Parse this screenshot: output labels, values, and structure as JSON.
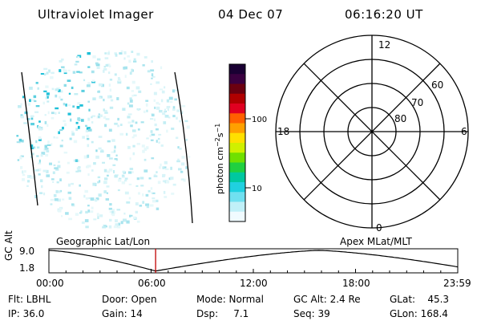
{
  "header": {
    "instrument": "Ultraviolet Imager",
    "date": "04 Dec 07",
    "time": "06:16:20 UT"
  },
  "colorbar": {
    "unit_label": "photon cm",
    "ticks": [
      "100",
      "10"
    ],
    "colors": [
      "#1a0033",
      "#3a0040",
      "#6b0010",
      "#b00000",
      "#e00020",
      "#ff6000",
      "#ffa000",
      "#ffe000",
      "#d0f000",
      "#70e000",
      "#20d040",
      "#00c8a0",
      "#20d0e0",
      "#70e0f0",
      "#c0f0f8",
      "#f0fbff"
    ]
  },
  "polar_plot": {
    "mlt_labels": {
      "top": "12",
      "left": "18",
      "right": "6",
      "bottom": "0"
    },
    "lat_labels": [
      "60",
      "70",
      "80"
    ]
  },
  "timeline": {
    "ylabel": "GC Alt",
    "ymax": "9.0",
    "ymin": "1.8",
    "left_label": "Geographic Lat/Lon",
    "right_label": "Apex  MLat/MLT",
    "ticks": [
      "00:00",
      "06:00",
      "12:00",
      "18:00",
      "23:59"
    ],
    "cursor_fraction": 0.261,
    "cursor_color": "#c00000"
  },
  "info": {
    "flt": "Flt: LBHL",
    "ip": "IP: 36.0",
    "door": "Door: Open",
    "gain": "Gain: 14",
    "mode": "Mode: Normal",
    "dsp": "Dsp:     7.1",
    "gc_alt": "GC Alt: 2.4 Re",
    "seq": "Seq: 39",
    "glat": "GLat:    45.3",
    "glon": "GLon: 168.4"
  }
}
